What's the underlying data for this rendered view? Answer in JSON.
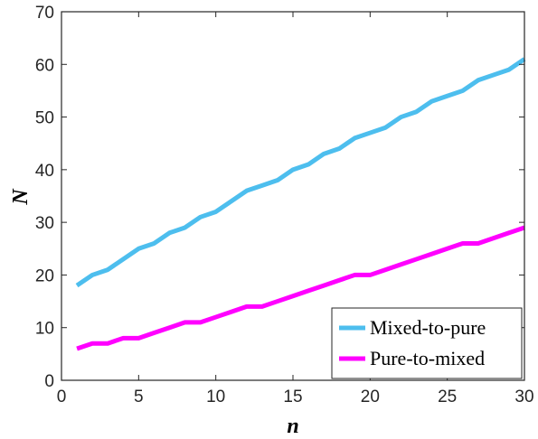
{
  "chart_data": {
    "type": "line",
    "xlabel": "n",
    "ylabel": "N",
    "xlim": [
      0,
      30
    ],
    "ylim": [
      0,
      70
    ],
    "xticks": [
      0,
      5,
      10,
      15,
      20,
      25,
      30
    ],
    "yticks": [
      0,
      10,
      20,
      30,
      40,
      50,
      60,
      70
    ],
    "grid": false,
    "legend_position": "bottom-right",
    "x": [
      1,
      2,
      3,
      4,
      5,
      6,
      7,
      8,
      9,
      10,
      11,
      12,
      13,
      14,
      15,
      16,
      17,
      18,
      19,
      20,
      21,
      22,
      23,
      24,
      25,
      26,
      27,
      28,
      29,
      30
    ],
    "series": [
      {
        "name": "Mixed-to-pure",
        "color": "#4DBEEE",
        "values": [
          18,
          20,
          21,
          23,
          25,
          26,
          28,
          29,
          31,
          32,
          34,
          36,
          37,
          38,
          40,
          41,
          43,
          44,
          46,
          47,
          48,
          50,
          51,
          53,
          54,
          55,
          57,
          58,
          59,
          61
        ]
      },
      {
        "name": "Pure-to-mixed",
        "color": "#FF00FF",
        "values": [
          6,
          7,
          7,
          8,
          8,
          9,
          10,
          11,
          11,
          12,
          13,
          14,
          14,
          15,
          16,
          17,
          18,
          19,
          20,
          20,
          21,
          22,
          23,
          24,
          25,
          26,
          26,
          27,
          28,
          29
        ]
      }
    ]
  }
}
